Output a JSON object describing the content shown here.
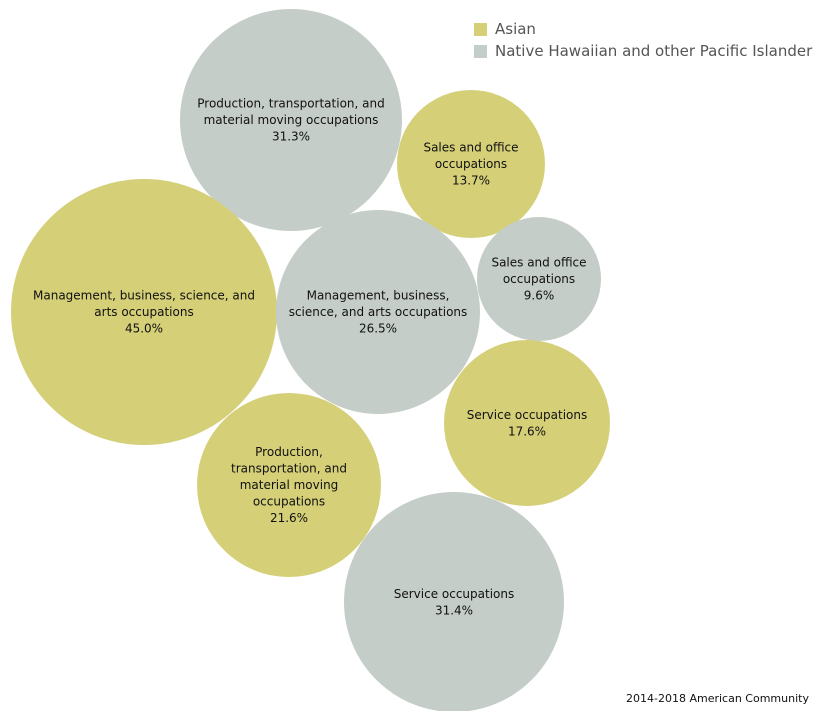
{
  "chart_data": {
    "type": "bubble",
    "title": "",
    "legend": {
      "placement": "top-right",
      "entries": [
        {
          "name": "Asian",
          "color": "#d5cf78"
        },
        {
          "name": "Native Hawaiian and other Pacific Islander",
          "color": "#c5cdc8"
        }
      ]
    },
    "bubbles": [
      {
        "series": "Native Hawaiian and other Pacific Islander",
        "category": "Production, transportation, and material moving occupations",
        "value": 31.3,
        "value_label": "31.3%",
        "label_lines": [
          "Production, transportation, and",
          "material moving occupations",
          "31.3%"
        ]
      },
      {
        "series": "Asian",
        "category": "Sales and office occupations",
        "value": 13.7,
        "value_label": "13.7%",
        "label_lines": [
          "Sales and office",
          "occupations",
          "13.7%"
        ]
      },
      {
        "series": "Asian",
        "category": "Management, business, science, and arts occupations",
        "value": 45.0,
        "value_label": "45.0%",
        "label_lines": [
          "Management, business, science, and",
          "arts occupations",
          "45.0%"
        ]
      },
      {
        "series": "Native Hawaiian and other Pacific Islander",
        "category": "Management, business, science, and arts occupations",
        "value": 26.5,
        "value_label": "26.5%",
        "label_lines": [
          "Management, business,",
          "science, and arts occupations",
          "26.5%"
        ]
      },
      {
        "series": "Native Hawaiian and other Pacific Islander",
        "category": "Sales and office occupations",
        "value": 9.6,
        "value_label": "9.6%",
        "label_lines": [
          "Sales and office",
          "occupations",
          "9.6%"
        ]
      },
      {
        "series": "Asian",
        "category": "Service occupations",
        "value": 17.6,
        "value_label": "17.6%",
        "label_lines": [
          "Service occupations",
          "17.6%"
        ]
      },
      {
        "series": "Asian",
        "category": "Production, transportation, and material moving occupations",
        "value": 21.6,
        "value_label": "21.6%",
        "label_lines": [
          "Production,",
          "transportation, and",
          "material moving",
          "occupations",
          "21.6%"
        ]
      },
      {
        "series": "Native Hawaiian and other Pacific Islander",
        "category": "Service occupations",
        "value": 31.4,
        "value_label": "31.4%",
        "label_lines": [
          "Service occupations",
          "31.4%"
        ]
      }
    ]
  },
  "source": "2014-2018 American Community"
}
